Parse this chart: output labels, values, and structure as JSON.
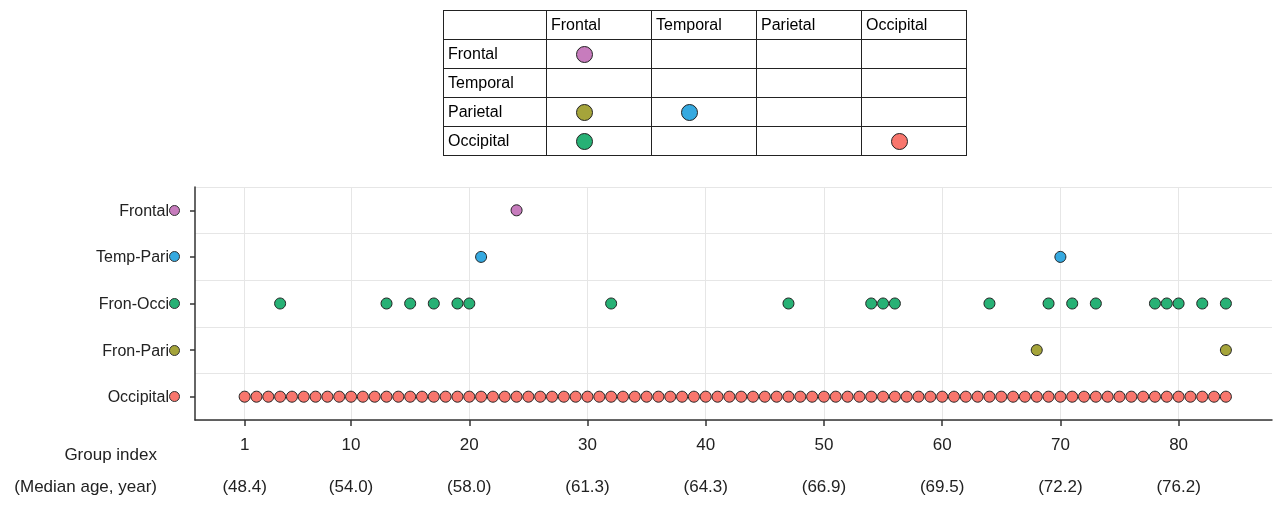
{
  "chart_data": [
    {
      "type": "other",
      "categories": [
        "Frontal",
        "Temporal",
        "Parietal",
        "Occipital"
      ],
      "y_categories": [
        "Frontal",
        "Temporal",
        "Parietal",
        "Occipital"
      ],
      "colors": [
        [
          "#c77cbd",
          null,
          null,
          null
        ],
        [
          null,
          null,
          null,
          null
        ],
        [
          "#a5a43a",
          "#35a9e0",
          null,
          null
        ],
        [
          "#27b175",
          null,
          null,
          "#f8766d"
        ]
      ]
    },
    {
      "type": "scatter",
      "orientation": "horizontal",
      "xlabel": "Group index",
      "annotations": [
        "(Median age, year)",
        "(48.4)",
        "(54.0)",
        "(58.0)",
        "(61.3)",
        "(64.3)",
        "(66.9)",
        "(69.5)",
        "(72.2)",
        "(76.2)"
      ],
      "categories": [
        "Frontal",
        "Temp-Pari",
        "Fron-Occi",
        "Fron-Pari",
        "Occipital"
      ],
      "xlim": [
        -3.2,
        87.9
      ],
      "xticks": [
        1,
        10,
        20,
        30,
        40,
        50,
        60,
        70,
        80
      ],
      "grid": true,
      "marker": "circle",
      "series": [
        {
          "color": "#c77cbd",
          "x": [
            "Frontal"
          ],
          "values": [
            24
          ]
        },
        {
          "color": "#35a9e0",
          "x": [
            "Temp-Pari",
            "Temp-Pari"
          ],
          "values": [
            21,
            70
          ]
        },
        {
          "color": "#27b175",
          "x": [
            "Fron-Occi",
            "Fron-Occi",
            "Fron-Occi",
            "Fron-Occi",
            "Fron-Occi",
            "Fron-Occi",
            "Fron-Occi",
            "Fron-Occi",
            "Fron-Occi",
            "Fron-Occi",
            "Fron-Occi",
            "Fron-Occi",
            "Fron-Occi",
            "Fron-Occi",
            "Fron-Occi",
            "Fron-Occi",
            "Fron-Occi",
            "Fron-Occi",
            "Fron-Occi",
            "Fron-Occi"
          ],
          "values": [
            4,
            13,
            15,
            17,
            19,
            20,
            32,
            47,
            54,
            55,
            56,
            64,
            69,
            71,
            73,
            78,
            79,
            80,
            82,
            84
          ]
        },
        {
          "color": "#a5a43a",
          "x": [
            "Fron-Pari",
            "Fron-Pari"
          ],
          "values": [
            68,
            84
          ]
        },
        {
          "color": "#f8766d",
          "x": [
            "Occipital",
            "Occipital",
            "Occipital",
            "Occipital",
            "Occipital",
            "Occipital",
            "Occipital",
            "Occipital",
            "Occipital",
            "Occipital",
            "Occipital",
            "Occipital",
            "Occipital",
            "Occipital",
            "Occipital",
            "Occipital",
            "Occipital",
            "Occipital",
            "Occipital",
            "Occipital",
            "Occipital",
            "Occipital",
            "Occipital",
            "Occipital",
            "Occipital",
            "Occipital",
            "Occipital",
            "Occipital",
            "Occipital",
            "Occipital",
            "Occipital",
            "Occipital",
            "Occipital",
            "Occipital",
            "Occipital",
            "Occipital",
            "Occipital",
            "Occipital",
            "Occipital",
            "Occipital",
            "Occipital",
            "Occipital",
            "Occipital",
            "Occipital",
            "Occipital",
            "Occipital",
            "Occipital",
            "Occipital",
            "Occipital",
            "Occipital",
            "Occipital",
            "Occipital",
            "Occipital",
            "Occipital",
            "Occipital",
            "Occipital",
            "Occipital",
            "Occipital",
            "Occipital",
            "Occipital",
            "Occipital",
            "Occipital",
            "Occipital",
            "Occipital",
            "Occipital",
            "Occipital",
            "Occipital",
            "Occipital",
            "Occipital",
            "Occipital",
            "Occipital",
            "Occipital",
            "Occipital",
            "Occipital",
            "Occipital",
            "Occipital",
            "Occipital",
            "Occipital",
            "Occipital",
            "Occipital",
            "Occipital",
            "Occipital",
            "Occipital",
            "Occipital"
          ],
          "values": [
            1,
            2,
            3,
            4,
            5,
            6,
            7,
            8,
            9,
            10,
            11,
            12,
            13,
            14,
            15,
            16,
            17,
            18,
            19,
            20,
            21,
            22,
            23,
            24,
            25,
            26,
            27,
            28,
            29,
            30,
            31,
            32,
            33,
            34,
            35,
            36,
            37,
            38,
            39,
            40,
            41,
            42,
            43,
            44,
            45,
            46,
            47,
            48,
            49,
            50,
            51,
            52,
            53,
            54,
            55,
            56,
            57,
            58,
            59,
            60,
            61,
            62,
            63,
            64,
            65,
            66,
            67,
            68,
            69,
            70,
            71,
            72,
            73,
            74,
            75,
            76,
            77,
            78,
            79,
            80,
            81,
            82,
            83,
            84
          ]
        }
      ]
    }
  ]
}
